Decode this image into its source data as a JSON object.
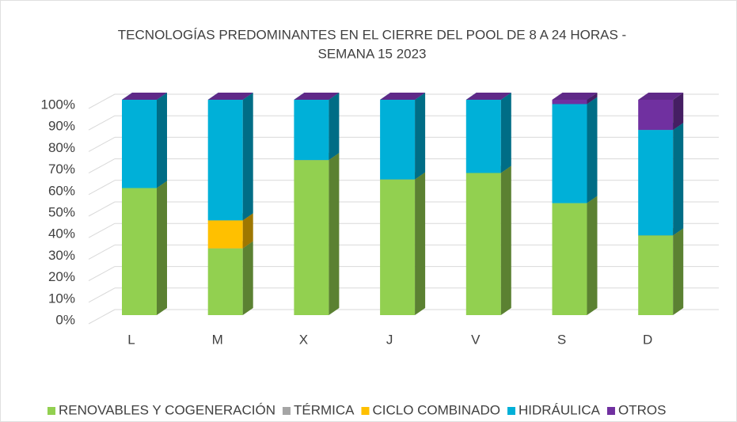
{
  "chart_data": {
    "type": "bar",
    "stacked": true,
    "title": [
      "TECNOLOGÍAS PREDOMINANTES EN EL CIERRE DEL POOL DE 8 A 24 HORAS -",
      "SEMANA 15 2023"
    ],
    "categories": [
      "L",
      "M",
      "X",
      "J",
      "V",
      "S",
      "D"
    ],
    "series": [
      {
        "name": "RENOVABLES Y COGENERACIÓN",
        "color": "#92d050",
        "values": [
          59,
          31,
          72,
          63,
          66,
          52,
          37
        ]
      },
      {
        "name": "TÉRMICA",
        "color": "#a5a5a5",
        "values": [
          0,
          0,
          0,
          0,
          0,
          0,
          0
        ]
      },
      {
        "name": "CICLO COMBINADO",
        "color": "#ffc000",
        "values": [
          0,
          13,
          0,
          0,
          0,
          0,
          0
        ]
      },
      {
        "name": "HIDRÁULICA",
        "color": "#00b0d8",
        "values": [
          41,
          56,
          28,
          37,
          34,
          46,
          49
        ]
      },
      {
        "name": "OTROS",
        "color": "#7030a0",
        "values": [
          0,
          0,
          0,
          0,
          0,
          2,
          14
        ]
      }
    ],
    "ylim": [
      0,
      100
    ],
    "yticks": [
      {
        "value": 0,
        "label": "0%"
      },
      {
        "value": 10,
        "label": "10%"
      },
      {
        "value": 20,
        "label": "20%"
      },
      {
        "value": 30,
        "label": "30%"
      },
      {
        "value": 40,
        "label": "40%"
      },
      {
        "value": 50,
        "label": "50%"
      },
      {
        "value": 60,
        "label": "60%"
      },
      {
        "value": 70,
        "label": "70%"
      },
      {
        "value": 80,
        "label": "80%"
      },
      {
        "value": 90,
        "label": "90%"
      },
      {
        "value": 100,
        "label": "100%"
      }
    ],
    "grid": true,
    "legend": "bottom"
  }
}
